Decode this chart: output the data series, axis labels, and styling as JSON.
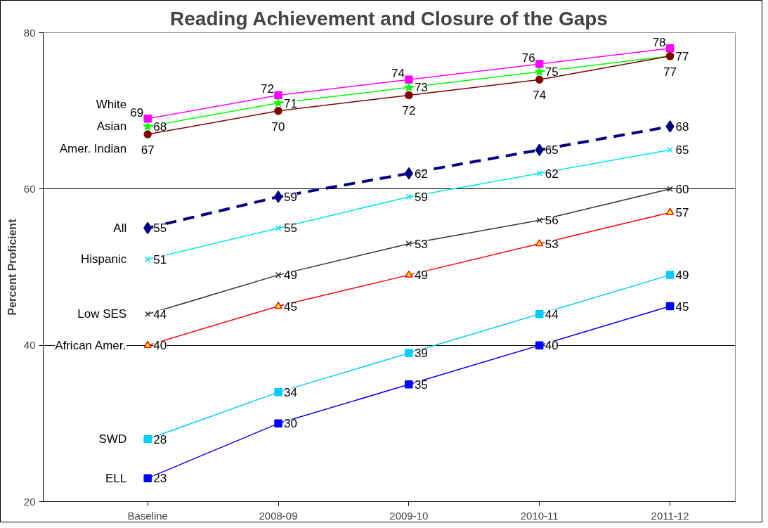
{
  "chart_data": {
    "type": "line",
    "title": "Reading Achievement and Closure of the Gaps",
    "ylabel": "Percent Proficient",
    "categories": [
      "Baseline",
      "2008-09",
      "2009-10",
      "2010-11",
      "2011-12"
    ],
    "ylim": [
      20,
      80
    ],
    "yticks": [
      20,
      40,
      60,
      80
    ],
    "grid": "y",
    "data_labels": true,
    "series": [
      {
        "name": "White",
        "color": "#ff00ff",
        "marker": "square",
        "values": [
          69,
          72,
          74,
          76,
          78
        ]
      },
      {
        "name": "Asian",
        "color": "#00ff00",
        "marker": "star",
        "values": [
          68,
          71,
          73,
          75,
          77
        ]
      },
      {
        "name": "Amer. Indian",
        "color": "#800000",
        "marker": "circle",
        "values": [
          67,
          70,
          72,
          74,
          77
        ]
      },
      {
        "name": "All",
        "color": "#000080",
        "marker": "diamond",
        "line_style": "dashed",
        "values": [
          55,
          59,
          62,
          65,
          68
        ]
      },
      {
        "name": "Hispanic",
        "color": "#00e5ee",
        "marker": "cross",
        "values": [
          51,
          55,
          59,
          62,
          65
        ]
      },
      {
        "name": "Low SES",
        "color": "#333333",
        "marker": "cross",
        "values": [
          44,
          49,
          53,
          56,
          60
        ]
      },
      {
        "name": "African Amer.",
        "color": "#ff0000",
        "marker": "triangle",
        "values": [
          40,
          45,
          49,
          53,
          57
        ]
      },
      {
        "name": "SWD",
        "color": "#00ccff",
        "marker": "square",
        "values": [
          28,
          34,
          39,
          44,
          49
        ]
      },
      {
        "name": "ELL",
        "color": "#0000ff",
        "marker": "square",
        "values": [
          23,
          30,
          35,
          40,
          45
        ]
      }
    ]
  }
}
